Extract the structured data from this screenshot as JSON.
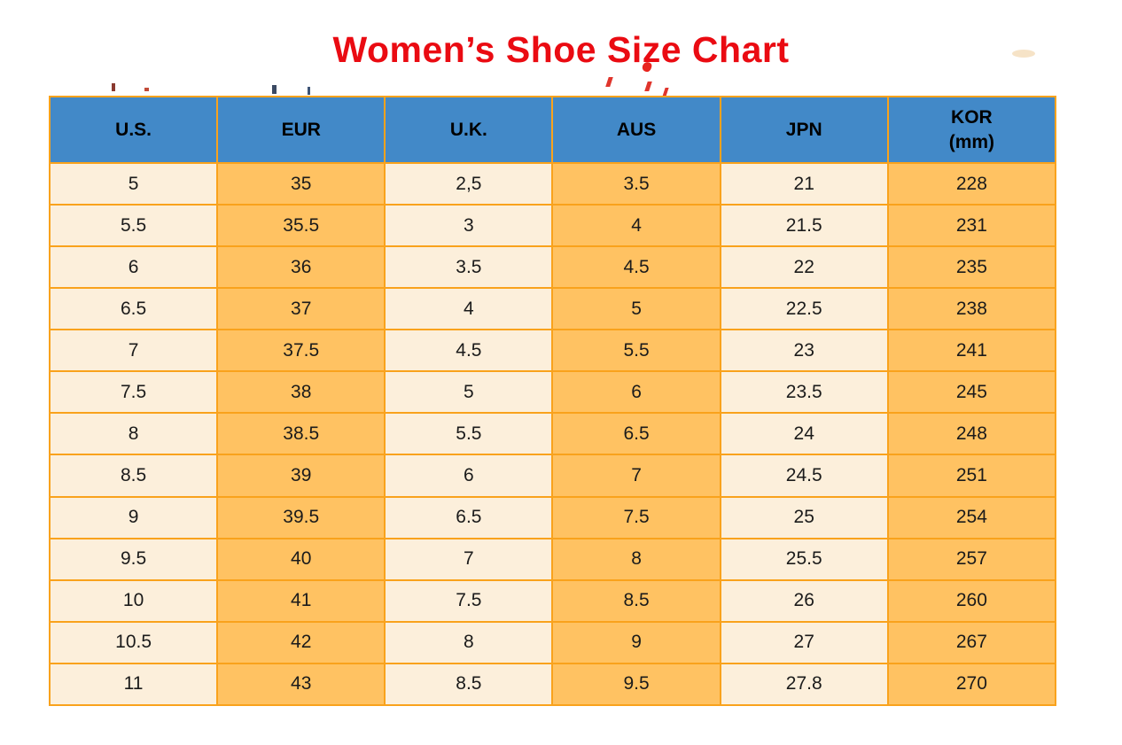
{
  "page": {
    "title": "Women’s Shoe Size Chart"
  },
  "table": {
    "columns": [
      {
        "key": "us",
        "label": "U.S."
      },
      {
        "key": "eur",
        "label": "EUR"
      },
      {
        "key": "uk",
        "label": "U.K."
      },
      {
        "key": "aus",
        "label": "AUS"
      },
      {
        "key": "jpn",
        "label": "JPN"
      },
      {
        "key": "kor",
        "label": "KOR",
        "sublabel": "(mm)"
      }
    ],
    "rows": [
      [
        "5",
        "35",
        "2,5",
        "3.5",
        "21",
        "228"
      ],
      [
        "5.5",
        "35.5",
        "3",
        "4",
        "21.5",
        "231"
      ],
      [
        "6",
        "36",
        "3.5",
        "4.5",
        "22",
        "235"
      ],
      [
        "6.5",
        "37",
        "4",
        "5",
        "22.5",
        "238"
      ],
      [
        "7",
        "37.5",
        "4.5",
        "5.5",
        "23",
        "241"
      ],
      [
        "7.5",
        "38",
        "5",
        "6",
        "23.5",
        "245"
      ],
      [
        "8",
        "38.5",
        "5.5",
        "6.5",
        "24",
        "248"
      ],
      [
        "8.5",
        "39",
        "6",
        "7",
        "24.5",
        "251"
      ],
      [
        "9",
        "39.5",
        "6.5",
        "7.5",
        "25",
        "254"
      ],
      [
        "9.5",
        "40",
        "7",
        "8",
        "25.5",
        "257"
      ],
      [
        "10",
        "41",
        "7.5",
        "8.5",
        "26",
        "260"
      ],
      [
        "10.5",
        "42",
        "8",
        "9",
        "27",
        "267"
      ],
      [
        "11",
        "43",
        "8.5",
        "9.5",
        "27.8",
        "270"
      ]
    ]
  },
  "colors": {
    "title_red": "#EA0B12",
    "header_blue": "#4289C8",
    "cell_light": "#FCEFDB",
    "cell_orange": "#FFC262",
    "border_orange": "#F9A21C",
    "text_dark": "#1B1B1B"
  }
}
